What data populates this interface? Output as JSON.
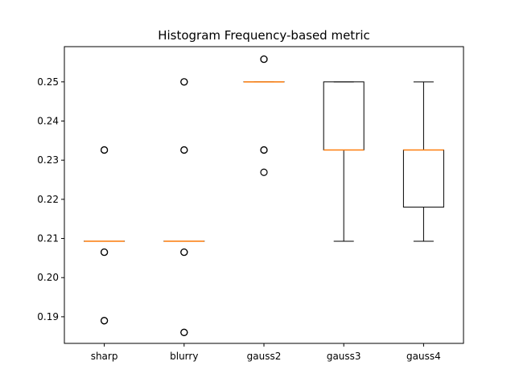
{
  "chart_data": {
    "type": "box",
    "title": "Histogram Frequency-based metric",
    "xlabel": "",
    "ylabel": "",
    "ylim": [
      0.1832,
      0.259
    ],
    "yticks": [
      0.19,
      0.2,
      0.21,
      0.22,
      0.23,
      0.24,
      0.25
    ],
    "grid": false,
    "categories": [
      "sharp",
      "blurry",
      "gauss2",
      "gauss3",
      "gauss4"
    ],
    "boxes": [
      {
        "name": "sharp",
        "whislo": 0.2093,
        "q1": 0.2093,
        "med": 0.2093,
        "q3": 0.2093,
        "whishi": 0.2093,
        "fliers": [
          0.2326,
          0.2326,
          0.2065,
          0.2065,
          0.189,
          0.189
        ]
      },
      {
        "name": "blurry",
        "whislo": 0.2093,
        "q1": 0.2093,
        "med": 0.2093,
        "q3": 0.2093,
        "whishi": 0.2093,
        "fliers": [
          0.25,
          0.25,
          0.2326,
          0.2326,
          0.2065,
          0.2065,
          0.186,
          0.186
        ]
      },
      {
        "name": "gauss2",
        "whislo": 0.25,
        "q1": 0.25,
        "med": 0.25,
        "q3": 0.25,
        "whishi": 0.25,
        "fliers": [
          0.2558,
          0.2558,
          0.2326,
          0.2326,
          0.2269
        ]
      },
      {
        "name": "gauss3",
        "whislo": 0.2093,
        "q1": 0.2326,
        "med": 0.2326,
        "q3": 0.25,
        "whishi": 0.25,
        "fliers": []
      },
      {
        "name": "gauss4",
        "whislo": 0.2093,
        "q1": 0.218,
        "med": 0.2326,
        "q3": 0.2326,
        "whishi": 0.25,
        "fliers": []
      }
    ],
    "colors": {
      "box": "#000000",
      "median": "#ff7f0e",
      "flier": "#000000"
    }
  }
}
